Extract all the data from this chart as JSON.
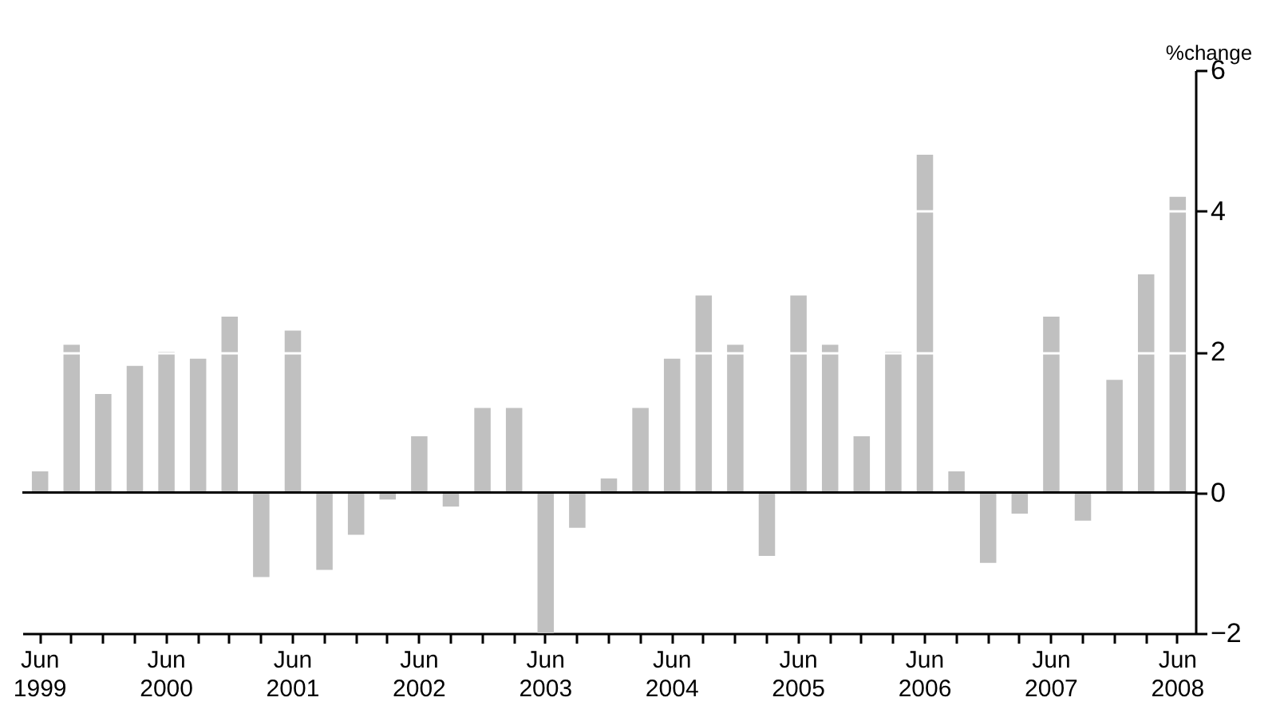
{
  "chart_data": {
    "type": "bar",
    "ylabel": "%change",
    "categories": [
      "Jun 1999",
      null,
      null,
      null,
      "Jun 2000",
      null,
      null,
      null,
      "Jun 2001",
      null,
      null,
      null,
      "Jun 2002",
      null,
      null,
      null,
      "Jun 2003",
      null,
      null,
      null,
      "Jun 2004",
      null,
      null,
      null,
      "Jun 2005",
      null,
      null,
      null,
      "Jun 2006",
      null,
      null,
      null,
      "Jun 2007",
      null,
      null,
      null,
      "Jun 2008"
    ],
    "values": [
      0.3,
      2.1,
      1.4,
      1.8,
      2.0,
      1.9,
      2.5,
      -1.2,
      2.3,
      -1.1,
      -0.6,
      -0.1,
      0.8,
      -0.2,
      1.2,
      1.2,
      -2.0,
      -0.5,
      0.2,
      1.2,
      1.9,
      2.8,
      2.1,
      -0.9,
      2.8,
      2.1,
      0.8,
      2.0,
      4.8,
      0.3,
      -1.0,
      -0.3,
      2.5,
      -0.4,
      1.6,
      3.1,
      4.2
    ],
    "color": "#c0c0c0",
    "ylim": [
      -2,
      6
    ],
    "yticks": [
      -2,
      0,
      2,
      4,
      6
    ],
    "grid": "y",
    "ref_lines": [
      {
        "axis": "y",
        "value": 0,
        "color": "#000000"
      }
    ]
  }
}
